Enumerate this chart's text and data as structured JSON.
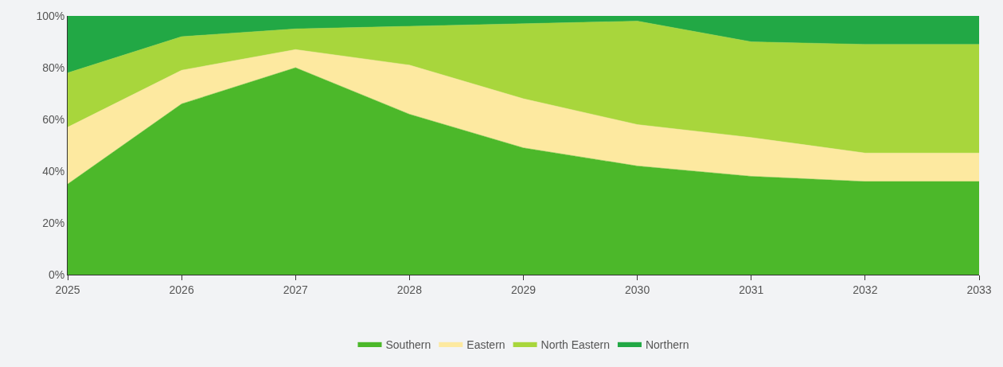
{
  "chart_data": {
    "type": "area",
    "stacked": true,
    "x": [
      2025,
      2026,
      2027,
      2028,
      2029,
      2030,
      2031,
      2032,
      2033
    ],
    "series": [
      {
        "name": "Southern",
        "color": "#4cb82a",
        "values": [
          35,
          66,
          80,
          62,
          49,
          42,
          38,
          36,
          36
        ]
      },
      {
        "name": "Eastern",
        "color": "#fde9a0",
        "values": [
          22,
          13,
          7,
          19,
          19,
          16,
          15,
          11,
          11
        ]
      },
      {
        "name": "North Eastern",
        "color": "#a8d63c",
        "values": [
          21,
          13,
          8,
          15,
          29,
          40,
          37,
          42,
          42
        ]
      },
      {
        "name": "Northern",
        "color": "#22a845",
        "values": [
          22,
          8,
          5,
          4,
          3,
          2,
          10,
          11,
          11
        ]
      }
    ],
    "xlim": [
      2025,
      2033
    ],
    "xticks": [
      2025,
      2026,
      2027,
      2028,
      2029,
      2030,
      2031,
      2032,
      2033
    ],
    "ylim": [
      0,
      100
    ],
    "yticks": [
      {
        "value": 0,
        "label": "0%"
      },
      {
        "value": 20,
        "label": "20%"
      },
      {
        "value": 40,
        "label": "40%"
      },
      {
        "value": 60,
        "label": "60%"
      },
      {
        "value": 80,
        "label": "80%"
      },
      {
        "value": 100,
        "label": "100%"
      }
    ],
    "legend": "bottom"
  }
}
